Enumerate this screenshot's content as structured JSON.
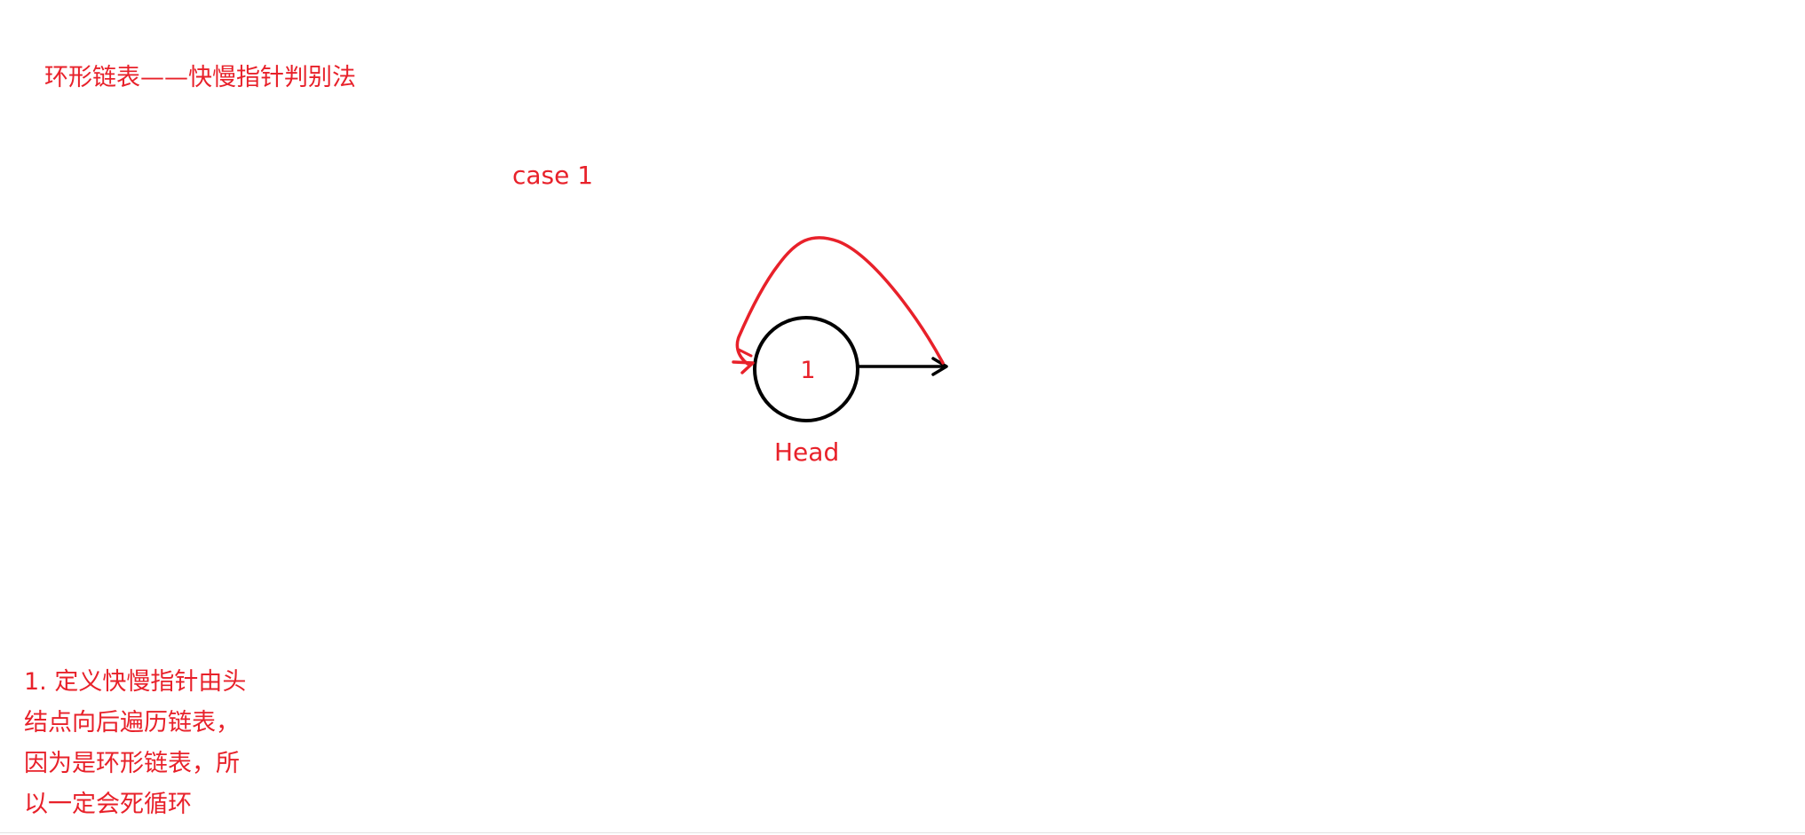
{
  "colors": {
    "annotation": "#e8212a",
    "stroke": "#000000",
    "background": "#ffffff"
  },
  "title": "环形链表——快慢指针判别法",
  "case_label": "case 1",
  "node": {
    "value": "1",
    "name": "Head"
  },
  "note": {
    "lines": [
      "1. 定义快慢指针由头",
      "结点向后遍历链表，",
      "因为是环形链表，所",
      "以一定会死循环"
    ]
  }
}
